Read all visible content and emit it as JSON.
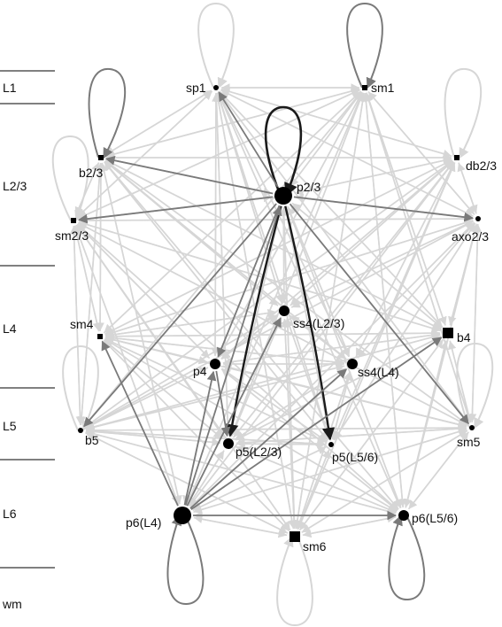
{
  "layers": [
    {
      "label": "L1"
    },
    {
      "label": "L2/3"
    },
    {
      "label": "L4"
    },
    {
      "label": "L5"
    },
    {
      "label": "L6"
    },
    {
      "label": "wm"
    }
  ],
  "nodes": [
    {
      "id": "sp1",
      "label": "sp1",
      "shape": "circle",
      "size": "small"
    },
    {
      "id": "sm1",
      "label": "sm1",
      "shape": "square",
      "size": "small"
    },
    {
      "id": "b2/3",
      "label": "b2/3",
      "shape": "square",
      "size": "small"
    },
    {
      "id": "db2/3",
      "label": "db2/3",
      "shape": "square",
      "size": "small"
    },
    {
      "id": "p2/3",
      "label": "p2/3",
      "shape": "circle",
      "size": "large"
    },
    {
      "id": "sm2/3",
      "label": "sm2/3",
      "shape": "square",
      "size": "small"
    },
    {
      "id": "axo2/3",
      "label": "axo2/3",
      "shape": "circle",
      "size": "small"
    },
    {
      "id": "ss4(L2/3)",
      "label": "ss4(L2/3)",
      "shape": "circle",
      "size": "medium"
    },
    {
      "id": "sm4",
      "label": "sm4",
      "shape": "square",
      "size": "small"
    },
    {
      "id": "b4",
      "label": "b4",
      "shape": "square",
      "size": "medium"
    },
    {
      "id": "p4",
      "label": "p4",
      "shape": "circle",
      "size": "medium"
    },
    {
      "id": "ss4(L4)",
      "label": "ss4(L4)",
      "shape": "circle",
      "size": "medium"
    },
    {
      "id": "b5",
      "label": "b5",
      "shape": "circle",
      "size": "small"
    },
    {
      "id": "sm5",
      "label": "sm5",
      "shape": "circle",
      "size": "small"
    },
    {
      "id": "p5(L2/3)",
      "label": "p5(L2/3)",
      "shape": "circle",
      "size": "medium"
    },
    {
      "id": "p5(L5/6)",
      "label": "p5(L5/6)",
      "shape": "circle",
      "size": "small"
    },
    {
      "id": "p6(L4)",
      "label": "p6(L4)",
      "shape": "circle",
      "size": "large"
    },
    {
      "id": "p6(L5/6)",
      "label": "p6(L5/6)",
      "shape": "circle",
      "size": "medium"
    },
    {
      "id": "sm6",
      "label": "sm6",
      "shape": "square",
      "size": "medium"
    }
  ],
  "self_loops": [
    {
      "node": "sp1",
      "strength": "light"
    },
    {
      "node": "sm1",
      "strength": "medium"
    },
    {
      "node": "b2/3",
      "strength": "medium"
    },
    {
      "node": "db2/3",
      "strength": "light"
    },
    {
      "node": "sm2/3",
      "strength": "light"
    },
    {
      "node": "p2/3",
      "strength": "strong"
    },
    {
      "node": "b5",
      "strength": "light"
    },
    {
      "node": "sm5",
      "strength": "light"
    },
    {
      "node": "p6(L4)",
      "strength": "medium"
    },
    {
      "node": "sm6",
      "strength": "light"
    },
    {
      "node": "p6(L5/6)",
      "strength": "medium"
    }
  ],
  "key_edges": [
    {
      "from": "p2/3",
      "to": "p5(L5/6)",
      "strength": "strong"
    },
    {
      "from": "p2/3",
      "to": "p5(L2/3)",
      "strength": "strong"
    },
    {
      "from": "p2/3",
      "to": "b2/3",
      "strength": "medium"
    },
    {
      "from": "p2/3",
      "to": "sm2/3",
      "strength": "medium"
    },
    {
      "from": "p2/3",
      "to": "axo2/3",
      "strength": "medium"
    },
    {
      "from": "p2/3",
      "to": "sp1",
      "strength": "medium"
    },
    {
      "from": "p2/3",
      "to": "p4",
      "strength": "medium"
    },
    {
      "from": "p2/3",
      "to": "sm5",
      "strength": "medium"
    },
    {
      "from": "p2/3",
      "to": "b5",
      "strength": "medium"
    },
    {
      "from": "p6(L4)",
      "to": "b4",
      "strength": "medium"
    },
    {
      "from": "p6(L4)",
      "to": "ss4(L4)",
      "strength": "medium"
    },
    {
      "from": "p6(L4)",
      "to": "ss4(L2/3)",
      "strength": "medium"
    },
    {
      "from": "p6(L4)",
      "to": "p4",
      "strength": "medium"
    },
    {
      "from": "p6(L4)",
      "to": "p6(L5/6)",
      "strength": "medium"
    },
    {
      "from": "p6(L4)",
      "to": "sm4",
      "strength": "medium"
    },
    {
      "from": "p6(L4)",
      "to": "p2/3",
      "strength": "medium"
    },
    {
      "from": "p4",
      "to": "p5(L2/3)",
      "strength": "medium"
    }
  ],
  "colors": {
    "strong": "#1a1a1a",
    "medium": "#7a7a7a",
    "light": "#d6d6d6",
    "node": "#000000",
    "layer_line": "#000000",
    "background": "#ffffff"
  }
}
